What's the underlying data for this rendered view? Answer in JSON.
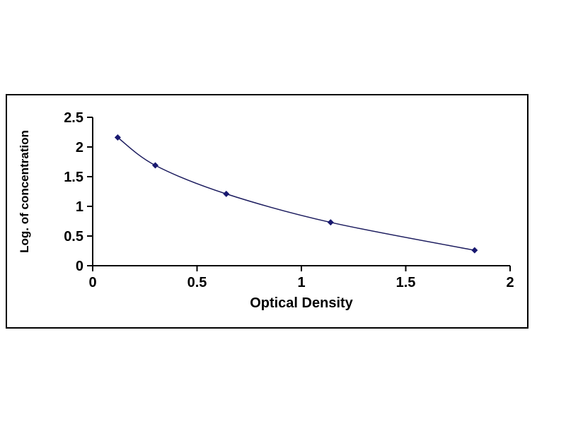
{
  "colors": {
    "background": "#ffffff",
    "frame_border": "#000000"
  },
  "chart_data": {
    "type": "line",
    "title": "",
    "xlabel": "Optical Density",
    "ylabel": "Log. of concentration",
    "x": [
      0.12,
      0.3,
      0.64,
      1.14,
      1.83
    ],
    "y": [
      2.16,
      1.69,
      1.21,
      0.73,
      0.26
    ],
    "xlim": [
      0,
      2
    ],
    "ylim": [
      0,
      2.5
    ],
    "x_ticks": [
      0,
      0.5,
      1,
      1.5,
      2
    ],
    "y_ticks": [
      0,
      0.5,
      1,
      1.5,
      2,
      2.5
    ],
    "grid": false,
    "legend": null,
    "marker": "diamond",
    "line_color": "#1b1b5e",
    "marker_color": "#191970",
    "axis_color": "#000000"
  }
}
